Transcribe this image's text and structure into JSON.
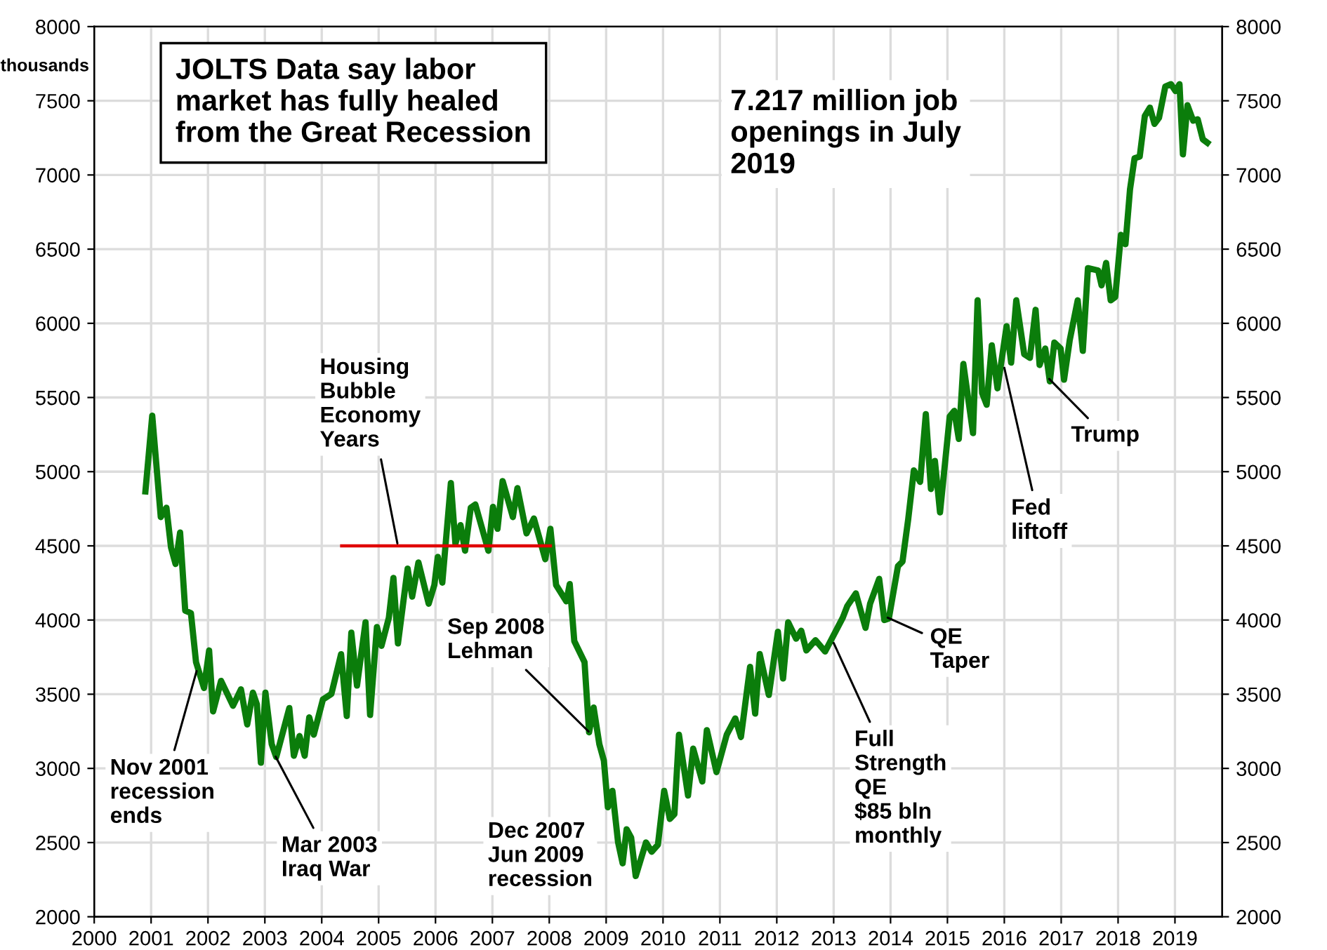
{
  "chart_data": {
    "type": "line",
    "title": "JOLTS Data say labor\nmarket has fully healed\nfrom the Great Recession",
    "subtitle": "7.217 million job\nopenings in July\n2019",
    "ylabel": "thousands",
    "series": [
      {
        "color": "#0b7d0b",
        "x": [
          2000.9,
          2001.02,
          2001.17,
          2001.27,
          2001.35,
          2001.43,
          2001.51,
          2001.6,
          2001.7,
          2001.79,
          2001.93,
          2002.02,
          2002.09,
          2002.23,
          2002.44,
          2002.58,
          2002.69,
          2002.79,
          2002.86,
          2002.93,
          2003.01,
          2003.12,
          2003.2,
          2003.43,
          2003.51,
          2003.61,
          2003.7,
          2003.78,
          2003.86,
          2004.02,
          2004.17,
          2004.34,
          2004.44,
          2004.52,
          2004.62,
          2004.77,
          2004.85,
          2004.97,
          2005.05,
          2005.18,
          2005.26,
          2005.34,
          2005.51,
          2005.59,
          2005.7,
          2005.88,
          2005.98,
          2006.04,
          2006.12,
          2006.27,
          2006.35,
          2006.44,
          2006.52,
          2006.62,
          2006.7,
          2006.93,
          2007.01,
          2007.09,
          2007.18,
          2007.36,
          2007.44,
          2007.6,
          2007.73,
          2007.93,
          2008.02,
          2008.12,
          2008.3,
          2008.36,
          2008.44,
          2008.62,
          2008.7,
          2008.78,
          2008.88,
          2008.96,
          2009.03,
          2009.11,
          2009.21,
          2009.29,
          2009.36,
          2009.44,
          2009.52,
          2009.7,
          2009.8,
          2009.91,
          2010.02,
          2010.12,
          2010.2,
          2010.28,
          2010.44,
          2010.53,
          2010.69,
          2010.77,
          2010.94,
          2011.12,
          2011.27,
          2011.37,
          2011.53,
          2011.62,
          2011.7,
          2011.86,
          2012.02,
          2012.11,
          2012.2,
          2012.34,
          2012.43,
          2012.52,
          2012.68,
          2012.85,
          2013.16,
          2013.24,
          2013.39,
          2013.56,
          2013.64,
          2013.8,
          2013.89,
          2013.97,
          2014.13,
          2014.21,
          2014.31,
          2014.41,
          2014.52,
          2014.62,
          2014.71,
          2014.78,
          2014.87,
          2015.04,
          2015.12,
          2015.2,
          2015.28,
          2015.45,
          2015.53,
          2015.61,
          2015.69,
          2015.78,
          2015.88,
          2016.04,
          2016.12,
          2016.21,
          2016.35,
          2016.45,
          2016.55,
          2016.62,
          2016.72,
          2016.8,
          2016.88,
          2016.99,
          2017.05,
          2017.15,
          2017.29,
          2017.38,
          2017.47,
          2017.65,
          2017.71,
          2017.79,
          2017.87,
          2017.95,
          2018.05,
          2018.13,
          2018.21,
          2018.29,
          2018.38,
          2018.47,
          2018.56,
          2018.64,
          2018.72,
          2018.83,
          2018.93,
          2019.01,
          2019.08,
          2019.14,
          2019.22,
          2019.32,
          2019.4,
          2019.49,
          2019.57
        ],
        "values": [
          4867,
          5378,
          4694,
          4757,
          4489,
          4378,
          4590,
          4063,
          4047,
          3716,
          3542,
          3795,
          3384,
          3590,
          3422,
          3533,
          3296,
          3511,
          3432,
          3038,
          3511,
          3164,
          3076,
          3407,
          3085,
          3218,
          3085,
          3344,
          3227,
          3464,
          3502,
          3770,
          3353,
          3915,
          3558,
          3985,
          3360,
          3953,
          3826,
          4016,
          4284,
          3842,
          4347,
          4158,
          4388,
          4110,
          4236,
          4426,
          4252,
          4924,
          4514,
          4640,
          4467,
          4757,
          4779,
          4467,
          4763,
          4615,
          4937,
          4694,
          4889,
          4584,
          4685,
          4410,
          4615,
          4236,
          4126,
          4243,
          3858,
          3716,
          3243,
          3410,
          3164,
          3053,
          2738,
          2849,
          2501,
          2360,
          2590,
          2533,
          2274,
          2501,
          2438,
          2485,
          2849,
          2659,
          2691,
          3227,
          2817,
          3133,
          2912,
          3258,
          2975,
          3227,
          3337,
          3211,
          3684,
          3369,
          3771,
          3495,
          3921,
          3606,
          3985,
          3874,
          3928,
          3795,
          3864,
          3788,
          4016,
          4095,
          4180,
          3947,
          4110,
          4278,
          4000,
          4010,
          4363,
          4394,
          4678,
          5009,
          4931,
          5388,
          4883,
          5073,
          4725,
          5372,
          5410,
          5221,
          5726,
          5260,
          6155,
          5530,
          5451,
          5852,
          5562,
          5981,
          5735,
          6155,
          5792,
          5767,
          6091,
          5719,
          5830,
          5609,
          5871,
          5830,
          5620,
          5886,
          6155,
          5814,
          6372,
          6356,
          6256,
          6407,
          6155,
          6177,
          6597,
          6533,
          6903,
          7113,
          7123,
          7397,
          7454,
          7344,
          7385,
          7596,
          7612,
          7565,
          7612,
          7139,
          7470,
          7366,
          7375,
          7240,
          7217
        ]
      },
      {
        "color": "#e00000",
        "x": [
          2004.35,
          2008.02
        ],
        "values": [
          4500,
          4500
        ]
      }
    ],
    "annotations": [
      {
        "text": "Nov 2001\nrecession\nends",
        "x": 2001.8,
        "y": 3656
      },
      {
        "text": "Mar 2003\nIraq War",
        "x": 2003.19,
        "y": 3079
      },
      {
        "text": "Housing\nBubble\nEconomy\nYears",
        "x": 2005.33,
        "y": 4517
      },
      {
        "text": "Sep 2008\nLehman",
        "x": 2008.69,
        "y": 3249
      },
      "Dec 2007\nJun 2009\nrecession",
      {
        "text": "Full\nStrength\nQE\n$85 bln\nmonthly",
        "x": 2013.0,
        "y": 3845
      },
      {
        "text": "QE\nTaper",
        "x": 2013.95,
        "y": 4016
      },
      {
        "text": "Fed\nliftoff",
        "x": 2016.0,
        "y": 5700
      },
      {
        "text": "Trump",
        "x": 2016.79,
        "y": 5625
      }
    ],
    "xlim": [
      2000,
      2019.83
    ],
    "xticks": [
      2000,
      2001,
      2002,
      2003,
      2004,
      2005,
      2006,
      2007,
      2008,
      2009,
      2010,
      2011,
      2012,
      2013,
      2014,
      2015,
      2016,
      2017,
      2018,
      2019
    ],
    "ylim": [
      2000,
      8000
    ],
    "yticks": [
      2000,
      2500,
      3000,
      3500,
      4000,
      4500,
      5000,
      5500,
      6000,
      6500,
      7000,
      7500,
      8000
    ],
    "y2lim": [
      2000,
      8000
    ],
    "y2ticks": [
      2000,
      2500,
      3000,
      3500,
      4000,
      4500,
      5000,
      5500,
      6000,
      6500,
      7000,
      7500,
      8000
    ],
    "grid": true,
    "marker": "none",
    "line_style": "solid"
  }
}
